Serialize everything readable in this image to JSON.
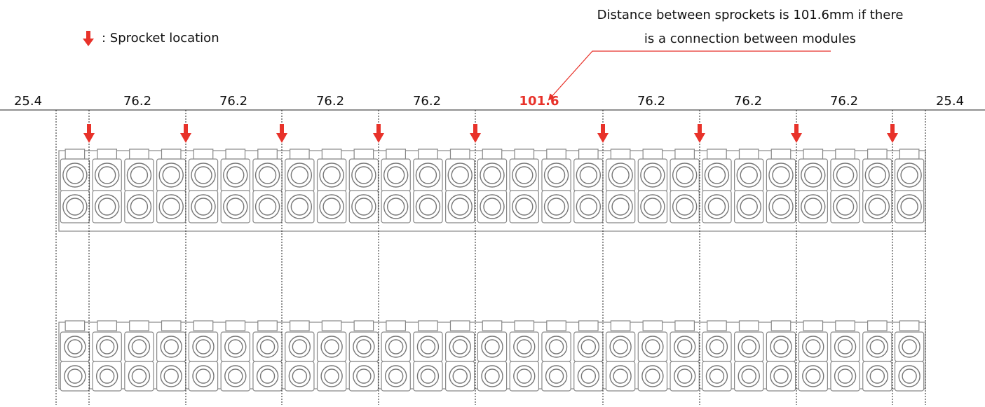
{
  "legend": {
    "label": ": Sprocket location"
  },
  "annotation": {
    "lines": [
      "Distance between sprockets is 101.6mm if there",
      "is a connection between modules"
    ]
  },
  "dimensions": [
    "25.4",
    "76.2",
    "76.2",
    "76.2",
    "76.2",
    "101.6",
    "76.2",
    "76.2",
    "76.2",
    "25.4"
  ]
}
